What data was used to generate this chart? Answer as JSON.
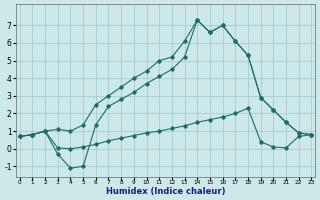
{
  "xlabel": "Humidex (Indice chaleur)",
  "background_color": "#cce8e8",
  "grid_color": "#aacccc",
  "line_color": "#1a6e6e",
  "xticks": [
    0,
    1,
    2,
    3,
    4,
    5,
    6,
    7,
    8,
    9,
    10,
    11,
    12,
    13,
    14,
    15,
    16,
    17,
    18,
    19,
    20,
    21,
    22,
    23
  ],
  "yticks": [
    -1,
    0,
    1,
    2,
    3,
    4,
    5,
    6,
    7
  ],
  "xlim": [
    -0.3,
    23.3
  ],
  "ylim": [
    -1.6,
    8.2
  ],
  "series": [
    {
      "x": [
        0,
        1,
        2,
        3,
        4,
        5,
        6,
        7,
        8,
        9,
        10,
        11,
        12,
        13,
        14,
        15,
        16,
        17,
        18,
        19,
        20,
        21,
        22,
        23
      ],
      "y": [
        0.7,
        0.8,
        1.0,
        1.1,
        1.0,
        1.35,
        2.5,
        3.0,
        3.5,
        4.0,
        4.4,
        5.0,
        5.2,
        6.1,
        7.3,
        6.6,
        7.0,
        6.1,
        5.3,
        2.9,
        2.2,
        1.5,
        0.9,
        0.8
      ]
    },
    {
      "x": [
        0,
        1,
        2,
        3,
        4,
        5,
        6,
        7,
        8,
        9,
        10,
        11,
        12,
        13,
        14,
        15,
        16,
        17,
        18,
        19,
        20,
        21,
        22,
        23
      ],
      "y": [
        0.7,
        0.8,
        1.0,
        -0.3,
        -1.1,
        -1.0,
        1.35,
        2.4,
        2.8,
        3.2,
        3.7,
        4.1,
        4.5,
        5.2,
        7.3,
        6.6,
        7.0,
        6.1,
        5.3,
        2.9,
        2.2,
        1.5,
        0.9,
        0.8
      ]
    },
    {
      "x": [
        0,
        1,
        2,
        3,
        4,
        5,
        6,
        7,
        8,
        9,
        10,
        11,
        12,
        13,
        14,
        15,
        16,
        17,
        18,
        19,
        20,
        21,
        22,
        23
      ],
      "y": [
        0.7,
        0.8,
        1.0,
        0.05,
        0.0,
        0.1,
        0.25,
        0.45,
        0.6,
        0.75,
        0.9,
        1.0,
        1.15,
        1.3,
        1.5,
        1.65,
        1.8,
        2.0,
        2.3,
        0.4,
        0.1,
        0.05,
        0.7,
        0.8
      ]
    }
  ]
}
